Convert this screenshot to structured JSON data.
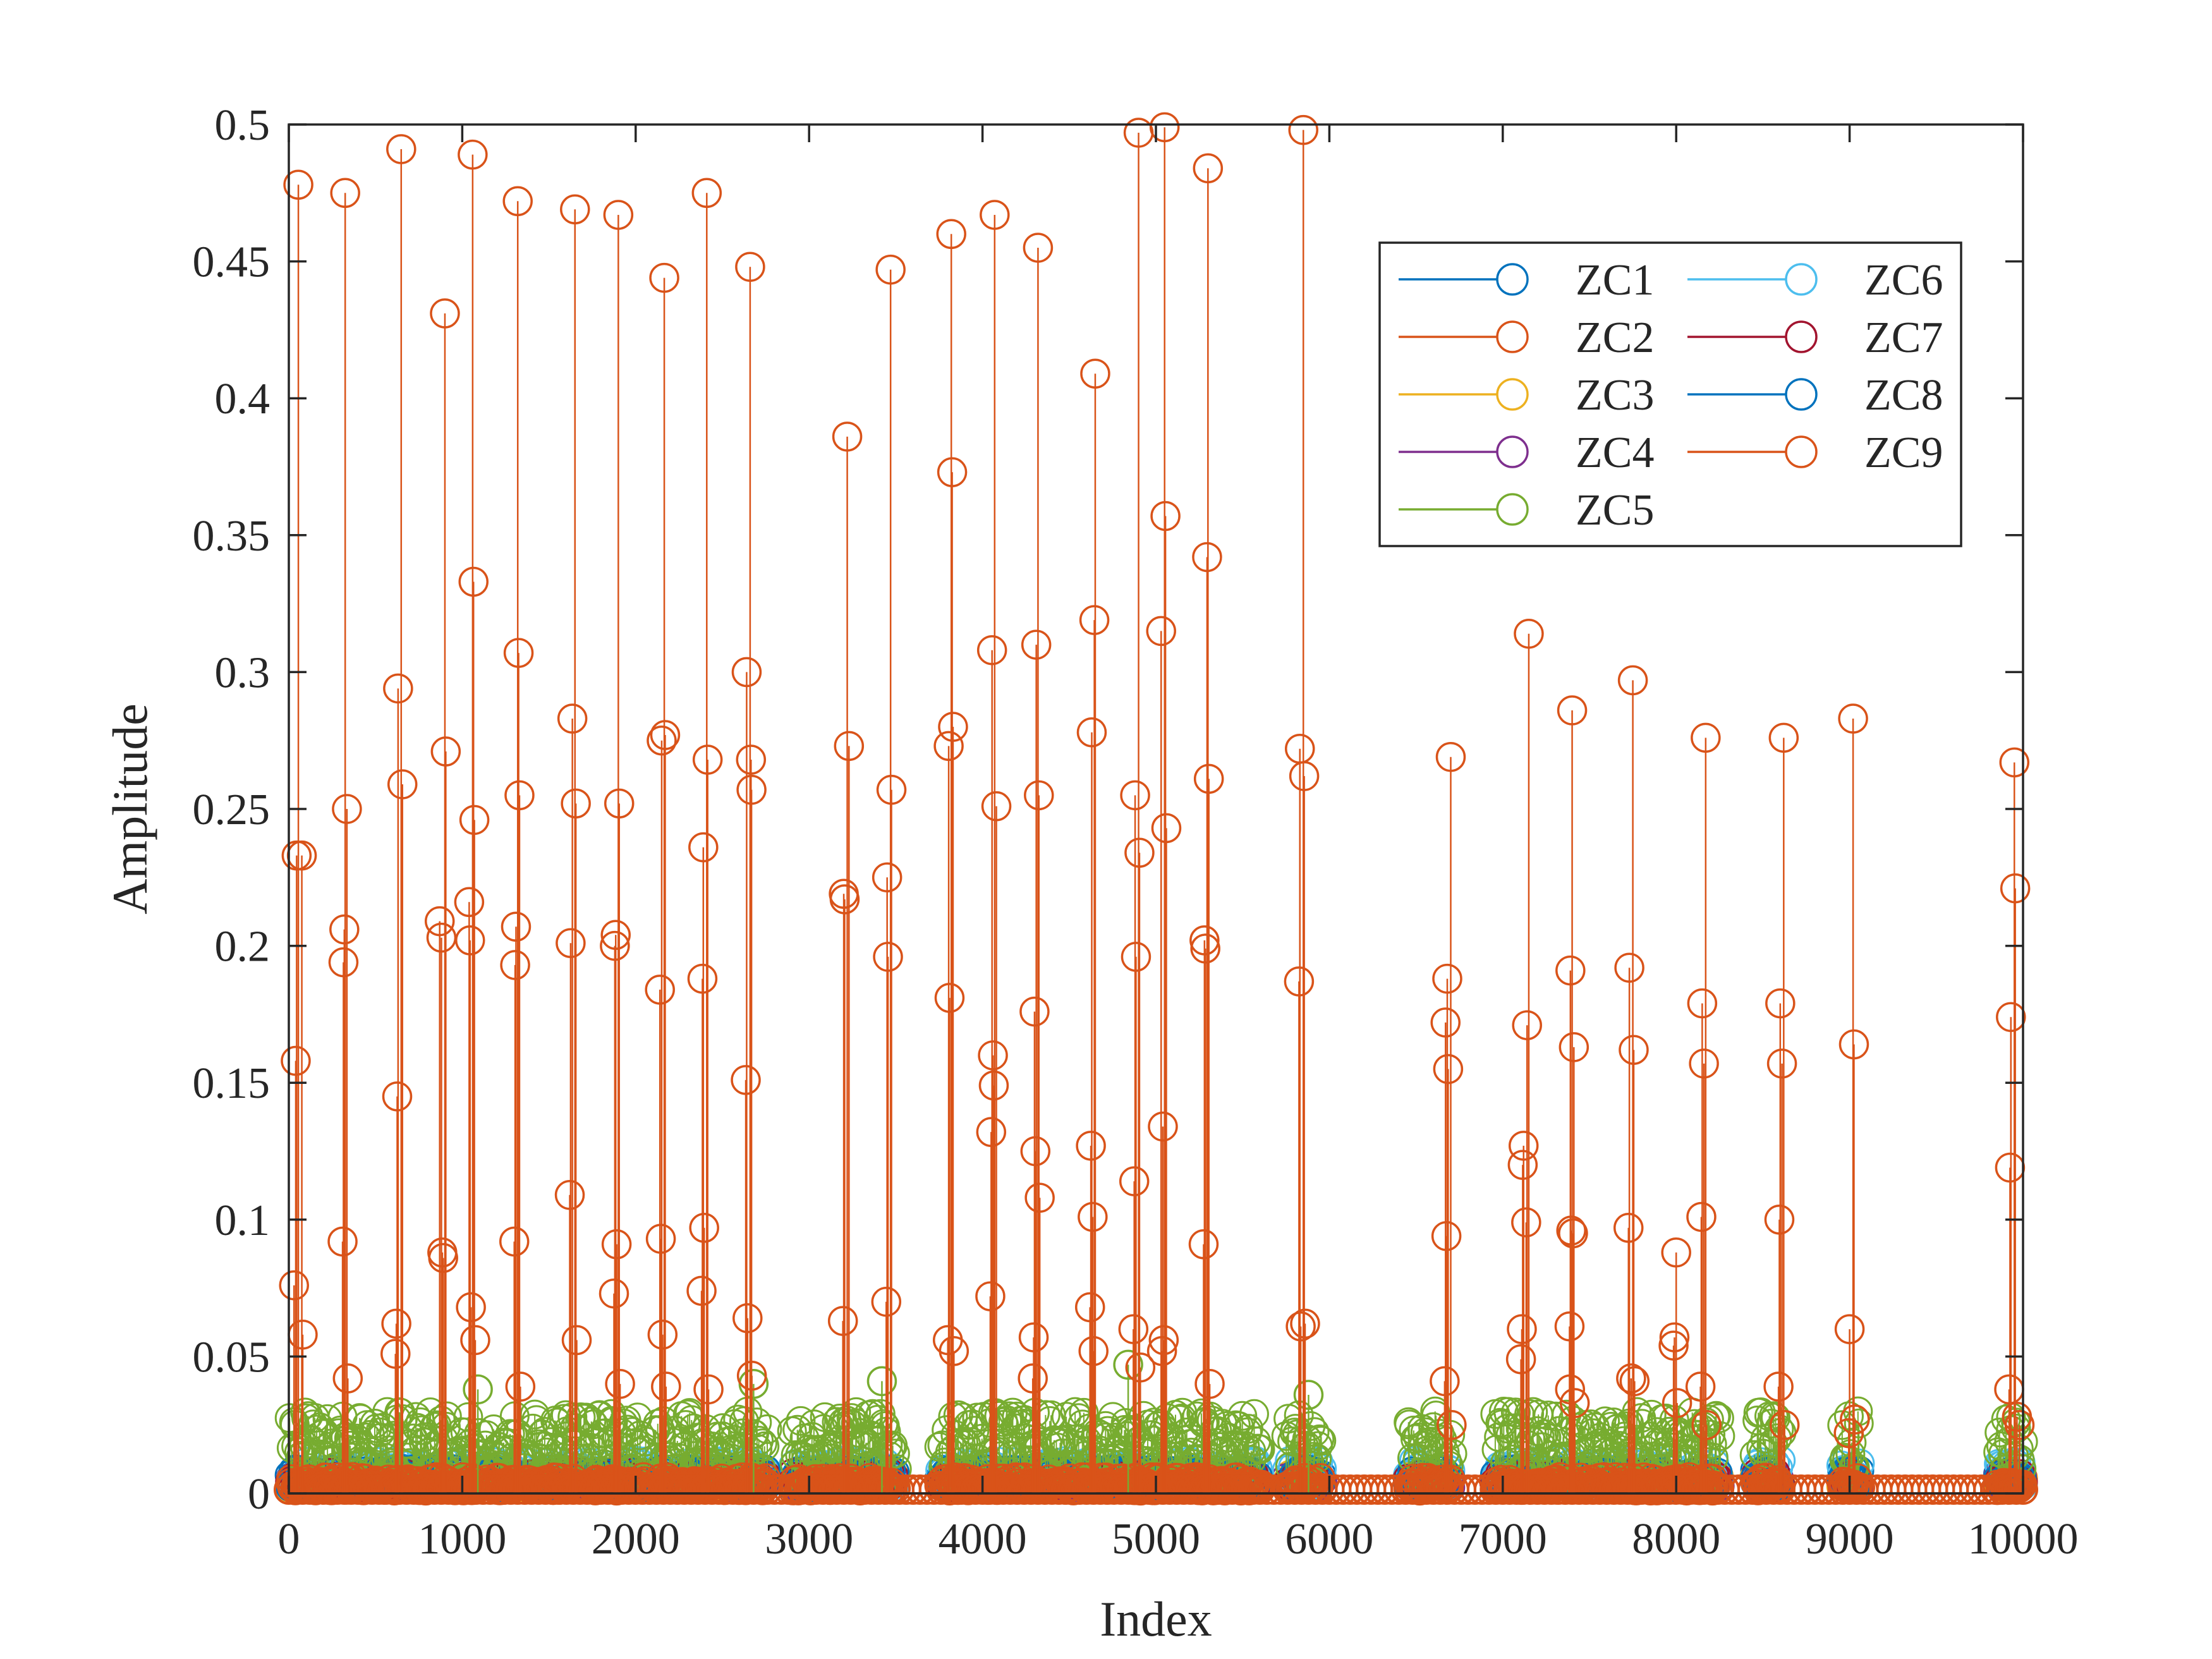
{
  "chart_data": {
    "type": "stem",
    "xlabel": "Index",
    "ylabel": "Amplitude",
    "xlim": [
      0,
      10000
    ],
    "ylim": [
      0,
      0.5
    ],
    "xticks": [
      0,
      1000,
      2000,
      3000,
      4000,
      5000,
      6000,
      7000,
      8000,
      9000,
      10000
    ],
    "yticks": [
      0,
      0.05,
      0.1,
      0.15,
      0.2,
      0.25,
      0.3,
      0.35,
      0.4,
      0.45,
      0.5
    ],
    "xtick_labels": [
      "0",
      "1000",
      "2000",
      "3000",
      "4000",
      "5000",
      "6000",
      "7000",
      "8000",
      "9000",
      "10000"
    ],
    "ytick_labels": [
      "0",
      "0.05",
      "0.1",
      "0.15",
      "0.2",
      "0.25",
      "0.3",
      "0.35",
      "0.4",
      "0.45",
      "0.5"
    ],
    "legend": {
      "position": "top-right",
      "columns": 2
    },
    "active_segments": [
      [
        0,
        1600
      ],
      [
        1600,
        2050
      ],
      [
        2100,
        2750
      ],
      [
        2900,
        3500
      ],
      [
        3750,
        5600
      ],
      [
        5750,
        5950
      ],
      [
        6450,
        6700
      ],
      [
        6950,
        8250
      ],
      [
        8450,
        8600
      ],
      [
        8950,
        9050
      ],
      [
        9850,
        10000
      ]
    ],
    "series": [
      {
        "name": "ZC1",
        "color": "#0072BD",
        "noise": 0.009
      },
      {
        "name": "ZC2",
        "color": "#D95319",
        "noise": 0.006,
        "peaks": [
          {
            "x": 55,
            "y": 0.478
          },
          {
            "x": 45,
            "y": 0.233
          },
          {
            "x": 75,
            "y": 0.233
          },
          {
            "x": 40,
            "y": 0.158
          },
          {
            "x": 30,
            "y": 0.076
          },
          {
            "x": 80,
            "y": 0.058
          },
          {
            "x": 325,
            "y": 0.475
          },
          {
            "x": 320,
            "y": 0.206
          },
          {
            "x": 315,
            "y": 0.194
          },
          {
            "x": 310,
            "y": 0.092
          },
          {
            "x": 335,
            "y": 0.25
          },
          {
            "x": 340,
            "y": 0.042
          },
          {
            "x": 648,
            "y": 0.491
          },
          {
            "x": 630,
            "y": 0.294
          },
          {
            "x": 655,
            "y": 0.259
          },
          {
            "x": 625,
            "y": 0.145
          },
          {
            "x": 620,
            "y": 0.062
          },
          {
            "x": 615,
            "y": 0.051
          },
          {
            "x": 900,
            "y": 0.431
          },
          {
            "x": 905,
            "y": 0.271
          },
          {
            "x": 870,
            "y": 0.209
          },
          {
            "x": 880,
            "y": 0.203
          },
          {
            "x": 885,
            "y": 0.088
          },
          {
            "x": 890,
            "y": 0.086
          },
          {
            "x": 1060,
            "y": 0.489
          },
          {
            "x": 1065,
            "y": 0.333
          },
          {
            "x": 1070,
            "y": 0.246
          },
          {
            "x": 1040,
            "y": 0.216
          },
          {
            "x": 1045,
            "y": 0.202
          },
          {
            "x": 1050,
            "y": 0.068
          },
          {
            "x": 1075,
            "y": 0.056
          },
          {
            "x": 1320,
            "y": 0.472
          },
          {
            "x": 1325,
            "y": 0.307
          },
          {
            "x": 1330,
            "y": 0.255
          },
          {
            "x": 1310,
            "y": 0.207
          },
          {
            "x": 1305,
            "y": 0.193
          },
          {
            "x": 1300,
            "y": 0.092
          },
          {
            "x": 1335,
            "y": 0.039
          },
          {
            "x": 1650,
            "y": 0.469
          },
          {
            "x": 1635,
            "y": 0.283
          },
          {
            "x": 1655,
            "y": 0.252
          },
          {
            "x": 1625,
            "y": 0.201
          },
          {
            "x": 1620,
            "y": 0.109
          },
          {
            "x": 1660,
            "y": 0.056
          },
          {
            "x": 1900,
            "y": 0.467
          },
          {
            "x": 1905,
            "y": 0.252
          },
          {
            "x": 1885,
            "y": 0.204
          },
          {
            "x": 1880,
            "y": 0.2
          },
          {
            "x": 1890,
            "y": 0.091
          },
          {
            "x": 1875,
            "y": 0.073
          },
          {
            "x": 1910,
            "y": 0.04
          },
          {
            "x": 2165,
            "y": 0.444
          },
          {
            "x": 2170,
            "y": 0.277
          },
          {
            "x": 2150,
            "y": 0.275
          },
          {
            "x": 2140,
            "y": 0.184
          },
          {
            "x": 2145,
            "y": 0.093
          },
          {
            "x": 2155,
            "y": 0.058
          },
          {
            "x": 2175,
            "y": 0.039
          },
          {
            "x": 2410,
            "y": 0.475
          },
          {
            "x": 2415,
            "y": 0.268
          },
          {
            "x": 2390,
            "y": 0.236
          },
          {
            "x": 2385,
            "y": 0.188
          },
          {
            "x": 2395,
            "y": 0.097
          },
          {
            "x": 2380,
            "y": 0.074
          },
          {
            "x": 2420,
            "y": 0.038
          },
          {
            "x": 2660,
            "y": 0.448
          },
          {
            "x": 2665,
            "y": 0.268
          },
          {
            "x": 2640,
            "y": 0.3
          },
          {
            "x": 2668,
            "y": 0.257
          },
          {
            "x": 2635,
            "y": 0.151
          },
          {
            "x": 2645,
            "y": 0.064
          },
          {
            "x": 2670,
            "y": 0.043
          },
          {
            "x": 3220,
            "y": 0.386
          },
          {
            "x": 3230,
            "y": 0.273
          },
          {
            "x": 3200,
            "y": 0.219
          },
          {
            "x": 3205,
            "y": 0.217
          },
          {
            "x": 3195,
            "y": 0.063
          },
          {
            "x": 3470,
            "y": 0.447
          },
          {
            "x": 3475,
            "y": 0.257
          },
          {
            "x": 3450,
            "y": 0.225
          },
          {
            "x": 3455,
            "y": 0.196
          },
          {
            "x": 3445,
            "y": 0.07
          },
          {
            "x": 3820,
            "y": 0.46
          },
          {
            "x": 3825,
            "y": 0.373
          },
          {
            "x": 3830,
            "y": 0.28
          },
          {
            "x": 3805,
            "y": 0.273
          },
          {
            "x": 3810,
            "y": 0.181
          },
          {
            "x": 3800,
            "y": 0.056
          },
          {
            "x": 3835,
            "y": 0.052
          },
          {
            "x": 4070,
            "y": 0.467
          },
          {
            "x": 4055,
            "y": 0.308
          },
          {
            "x": 4080,
            "y": 0.251
          },
          {
            "x": 4060,
            "y": 0.16
          },
          {
            "x": 4065,
            "y": 0.149
          },
          {
            "x": 4050,
            "y": 0.132
          },
          {
            "x": 4045,
            "y": 0.072
          },
          {
            "x": 4320,
            "y": 0.455
          },
          {
            "x": 4310,
            "y": 0.31
          },
          {
            "x": 4325,
            "y": 0.255
          },
          {
            "x": 4300,
            "y": 0.176
          },
          {
            "x": 4305,
            "y": 0.125
          },
          {
            "x": 4330,
            "y": 0.108
          },
          {
            "x": 4295,
            "y": 0.057
          },
          {
            "x": 4290,
            "y": 0.042
          },
          {
            "x": 4650,
            "y": 0.409
          },
          {
            "x": 4645,
            "y": 0.319
          },
          {
            "x": 4630,
            "y": 0.278
          },
          {
            "x": 4625,
            "y": 0.127
          },
          {
            "x": 4635,
            "y": 0.101
          },
          {
            "x": 4620,
            "y": 0.068
          },
          {
            "x": 4640,
            "y": 0.052
          },
          {
            "x": 4900,
            "y": 0.497
          },
          {
            "x": 4880,
            "y": 0.255
          },
          {
            "x": 4905,
            "y": 0.234
          },
          {
            "x": 4885,
            "y": 0.196
          },
          {
            "x": 4875,
            "y": 0.114
          },
          {
            "x": 4870,
            "y": 0.06
          },
          {
            "x": 4910,
            "y": 0.046
          },
          {
            "x": 5050,
            "y": 0.499
          },
          {
            "x": 5055,
            "y": 0.357
          },
          {
            "x": 5030,
            "y": 0.315
          },
          {
            "x": 5060,
            "y": 0.243
          },
          {
            "x": 5040,
            "y": 0.134
          },
          {
            "x": 5045,
            "y": 0.056
          },
          {
            "x": 5035,
            "y": 0.052
          },
          {
            "x": 5300,
            "y": 0.484
          },
          {
            "x": 5295,
            "y": 0.342
          },
          {
            "x": 5305,
            "y": 0.261
          },
          {
            "x": 5280,
            "y": 0.202
          },
          {
            "x": 5285,
            "y": 0.199
          },
          {
            "x": 5275,
            "y": 0.091
          },
          {
            "x": 5310,
            "y": 0.04
          },
          {
            "x": 5850,
            "y": 0.498
          },
          {
            "x": 5830,
            "y": 0.272
          },
          {
            "x": 5855,
            "y": 0.262
          },
          {
            "x": 5825,
            "y": 0.187
          },
          {
            "x": 5835,
            "y": 0.061
          },
          {
            "x": 5860,
            "y": 0.062
          },
          {
            "x": 6700,
            "y": 0.269
          },
          {
            "x": 6680,
            "y": 0.188
          },
          {
            "x": 6670,
            "y": 0.172
          },
          {
            "x": 6685,
            "y": 0.155
          },
          {
            "x": 6675,
            "y": 0.094
          },
          {
            "x": 6665,
            "y": 0.041
          },
          {
            "x": 6705,
            "y": 0.025
          },
          {
            "x": 7150,
            "y": 0.314
          },
          {
            "x": 7140,
            "y": 0.171
          },
          {
            "x": 7120,
            "y": 0.127
          },
          {
            "x": 7115,
            "y": 0.12
          },
          {
            "x": 7135,
            "y": 0.099
          },
          {
            "x": 7110,
            "y": 0.06
          },
          {
            "x": 7105,
            "y": 0.049
          },
          {
            "x": 7400,
            "y": 0.286
          },
          {
            "x": 7390,
            "y": 0.191
          },
          {
            "x": 7410,
            "y": 0.163
          },
          {
            "x": 7395,
            "y": 0.096
          },
          {
            "x": 7405,
            "y": 0.095
          },
          {
            "x": 7385,
            "y": 0.061
          },
          {
            "x": 7388,
            "y": 0.038
          },
          {
            "x": 7415,
            "y": 0.033
          },
          {
            "x": 7750,
            "y": 0.297
          },
          {
            "x": 7730,
            "y": 0.192
          },
          {
            "x": 7755,
            "y": 0.162
          },
          {
            "x": 7725,
            "y": 0.097
          },
          {
            "x": 7740,
            "y": 0.042
          },
          {
            "x": 7760,
            "y": 0.041
          },
          {
            "x": 8000,
            "y": 0.088
          },
          {
            "x": 7990,
            "y": 0.057
          },
          {
            "x": 7985,
            "y": 0.054
          },
          {
            "x": 8005,
            "y": 0.033
          },
          {
            "x": 8170,
            "y": 0.276
          },
          {
            "x": 8150,
            "y": 0.179
          },
          {
            "x": 8160,
            "y": 0.157
          },
          {
            "x": 8145,
            "y": 0.101
          },
          {
            "x": 8140,
            "y": 0.039
          },
          {
            "x": 8175,
            "y": 0.025
          },
          {
            "x": 8620,
            "y": 0.276
          },
          {
            "x": 8600,
            "y": 0.179
          },
          {
            "x": 8610,
            "y": 0.157
          },
          {
            "x": 8595,
            "y": 0.1
          },
          {
            "x": 8590,
            "y": 0.039
          },
          {
            "x": 8625,
            "y": 0.025
          },
          {
            "x": 9020,
            "y": 0.283
          },
          {
            "x": 9025,
            "y": 0.164
          },
          {
            "x": 9000,
            "y": 0.06
          },
          {
            "x": 9030,
            "y": 0.027
          },
          {
            "x": 8995,
            "y": 0.022
          },
          {
            "x": 9950,
            "y": 0.267
          },
          {
            "x": 9955,
            "y": 0.221
          },
          {
            "x": 9930,
            "y": 0.174
          },
          {
            "x": 9925,
            "y": 0.119
          },
          {
            "x": 9920,
            "y": 0.038
          },
          {
            "x": 9965,
            "y": 0.028
          },
          {
            "x": 9980,
            "y": 0.025
          }
        ]
      },
      {
        "name": "ZC3",
        "color": "#EDB120",
        "noise": 0.007
      },
      {
        "name": "ZC4",
        "color": "#7E2F8E",
        "noise": 0.007
      },
      {
        "name": "ZC5",
        "color": "#77AC30",
        "noise": 0.03,
        "peaks": [
          {
            "x": 3420,
            "y": 0.041
          },
          {
            "x": 2680,
            "y": 0.04
          },
          {
            "x": 4840,
            "y": 0.047
          },
          {
            "x": 1090,
            "y": 0.038
          },
          {
            "x": 5880,
            "y": 0.036
          }
        ]
      },
      {
        "name": "ZC6",
        "color": "#4DBEEE",
        "noise": 0.012
      },
      {
        "name": "ZC7",
        "color": "#A2142F",
        "noise": 0.008
      },
      {
        "name": "ZC8",
        "color": "#0072BD",
        "noise": 0.009
      },
      {
        "name": "ZC9",
        "color": "#D95319",
        "noise": 0.004
      }
    ]
  }
}
